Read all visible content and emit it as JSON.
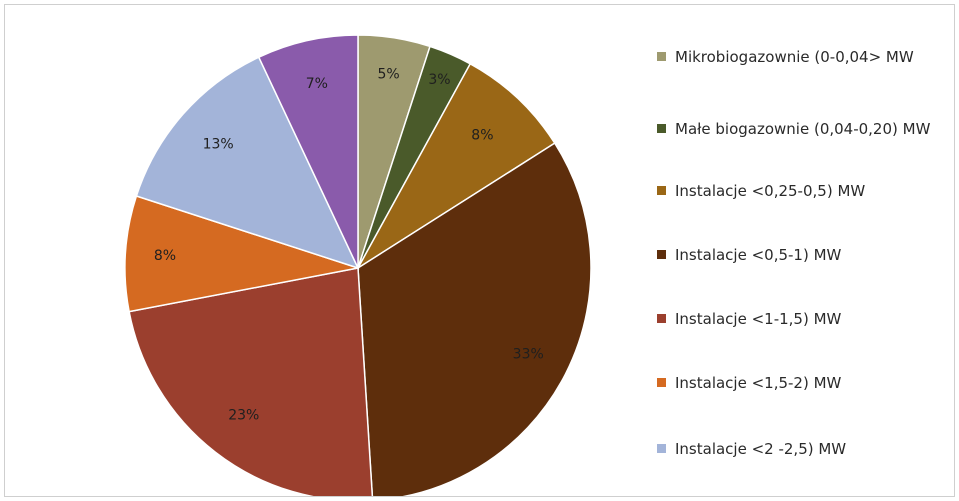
{
  "chart_data": {
    "type": "pie",
    "title": "",
    "start_angle_deg": 0,
    "direction": "clockwise",
    "slices": [
      {
        "label": "Mikrobiogazownie (0-0,04> MW",
        "value": 5,
        "display": "5%",
        "color": "#9e9a6f"
      },
      {
        "label": "Małe biogazownie (0,04-0,20) MW",
        "value": 3,
        "display": "3%",
        "color": "#4a5a2a"
      },
      {
        "label": "Instalacje <0,25-0,5) MW",
        "value": 8,
        "display": "8%",
        "color": "#9a6716"
      },
      {
        "label": "Instalacje <0,5-1) MW",
        "value": 33,
        "display": "33%",
        "color": "#5e2e0c"
      },
      {
        "label": "Instalacje <1-1,5) MW",
        "value": 23,
        "display": "23%",
        "color": "#9b3f2e"
      },
      {
        "label": "Instalacje <1,5-2) MW",
        "value": 8,
        "display": "8%",
        "color": "#d56a21"
      },
      {
        "label": "Instalacje <2 -2,5) MW",
        "value": 13,
        "display": "13%",
        "color": "#a3b4d9"
      },
      {
        "label": "",
        "value": 7,
        "display": "7%",
        "color": "#8a5bab"
      }
    ],
    "legend_position": "right",
    "legend_entries": [
      {
        "label": "Mikrobiogazownie (0-0,04> MW",
        "color": "#9e9a6f"
      },
      {
        "label": "Małe biogazownie (0,04-0,20) MW",
        "color": "#4a5a2a"
      },
      {
        "label": "Instalacje <0,25-0,5) MW",
        "color": "#9a6716"
      },
      {
        "label": "Instalacje <0,5-1) MW",
        "color": "#5e2e0c"
      },
      {
        "label": "Instalacje <1-1,5) MW",
        "color": "#9b3f2e"
      },
      {
        "label": "Instalacje <1,5-2) MW",
        "color": "#d56a21"
      },
      {
        "label": "Instalacje <2 -2,5) MW",
        "color": "#a3b4d9"
      }
    ]
  }
}
